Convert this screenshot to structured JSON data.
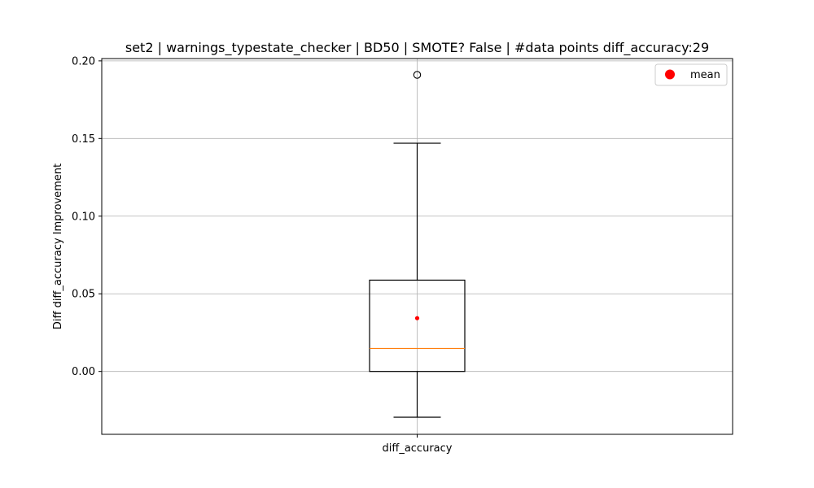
{
  "chart_data": {
    "type": "box",
    "title": "set2 | warnings_typestate_checker | BD50 | SMOTE? False | #data points diff_accuracy:29",
    "xlabel": "",
    "ylabel": "Diff diff_accuracy Improvement",
    "categories": [
      "diff_accuracy"
    ],
    "ylim": [
      -0.0405,
      0.2015
    ],
    "yticks": [
      0.0,
      0.05,
      0.1,
      0.15,
      0.2
    ],
    "ytick_labels": [
      "0.00",
      "0.05",
      "0.10",
      "0.15",
      "0.20"
    ],
    "grid": true,
    "legend": {
      "position": "top-right",
      "entries": [
        {
          "label": "mean",
          "color": "#ff0000",
          "marker": "circle"
        }
      ]
    },
    "boxes": [
      {
        "name": "diff_accuracy",
        "whisker_low": -0.0295,
        "q1": 0.0,
        "median": 0.0148,
        "q3": 0.0588,
        "whisker_high": 0.147,
        "mean": 0.0343,
        "outliers": [
          0.191
        ]
      }
    ],
    "colors": {
      "box": "#000000",
      "median": "#ff7f0e",
      "mean": "#ff0000",
      "grid": "#b0b0b0"
    },
    "data_points": 29
  }
}
